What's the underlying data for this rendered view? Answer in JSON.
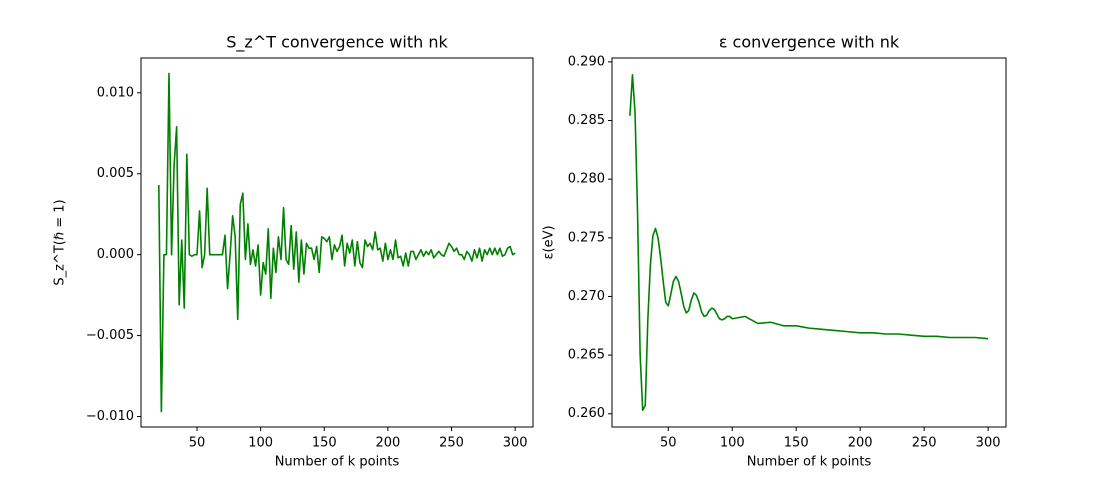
{
  "chart_data": [
    {
      "type": "line",
      "title": "S_z^T convergence with nk",
      "xlabel": "Number of k points",
      "ylabel": "S_z^T(ℏ = 1)",
      "color": "#008000",
      "xlim": [
        6,
        314
      ],
      "xticks": [
        50,
        100,
        150,
        200,
        250,
        300
      ],
      "ylim": [
        -0.01065,
        0.01215
      ],
      "yticks": [
        {
          "value": -0.01,
          "label": "−0.010"
        },
        {
          "value": -0.005,
          "label": "−0.005"
        },
        {
          "value": 0,
          "label": "0.000"
        },
        {
          "value": 0.005,
          "label": "0.005"
        },
        {
          "value": 0.01,
          "label": "0.010"
        }
      ],
      "x": [
        20,
        22,
        24,
        26,
        28,
        30,
        32,
        34,
        36,
        38,
        40,
        42,
        44,
        46,
        48,
        50,
        52,
        54,
        56,
        58,
        60,
        62,
        64,
        66,
        68,
        70,
        72,
        74,
        76,
        78,
        80,
        82,
        84,
        86,
        88,
        90,
        92,
        94,
        96,
        98,
        100,
        102,
        104,
        106,
        108,
        110,
        112,
        114,
        116,
        118,
        120,
        122,
        124,
        126,
        128,
        130,
        132,
        134,
        136,
        138,
        140,
        142,
        144,
        146,
        148,
        150,
        152,
        154,
        156,
        158,
        160,
        162,
        164,
        166,
        168,
        170,
        172,
        174,
        176,
        178,
        180,
        182,
        184,
        186,
        188,
        190,
        192,
        194,
        196,
        198,
        200,
        202,
        204,
        206,
        208,
        210,
        212,
        214,
        216,
        218,
        220,
        222,
        224,
        226,
        228,
        230,
        232,
        234,
        236,
        238,
        240,
        242,
        244,
        246,
        248,
        250,
        252,
        254,
        256,
        258,
        260,
        262,
        264,
        266,
        268,
        270,
        272,
        274,
        276,
        278,
        280,
        282,
        284,
        286,
        288,
        290,
        292,
        294,
        296,
        298,
        300
      ],
      "values": [
        0.0043,
        -0.0097,
        0.0,
        0.0,
        0.0112,
        0.0,
        0.0055,
        0.0079,
        -0.0031,
        0.0009,
        -0.0033,
        0.0062,
        0.0,
        -0.0001,
        0.0,
        0.0,
        0.0027,
        -0.0008,
        0.0,
        0.0041,
        0.0,
        0.0,
        0.0,
        0.0,
        0.0,
        0.0,
        0.0012,
        -0.0021,
        0.0,
        0.0024,
        0.0011,
        -0.004,
        0.0031,
        0.0038,
        -0.0003,
        0.0019,
        -0.0006,
        0.0003,
        -0.0007,
        0.0006,
        -0.0025,
        -0.0005,
        -0.0012,
        0.0016,
        -0.0027,
        0.0004,
        -0.0011,
        0.0011,
        -0.0003,
        0.0029,
        -0.0003,
        -0.0006,
        0.0018,
        -0.0009,
        0.0014,
        -0.0017,
        0.0009,
        -0.0012,
        0.0007,
        0.0004,
        0.0004,
        -0.0003,
        0.0005,
        -0.0011,
        0.0011,
        0.001,
        0.0008,
        0.0011,
        -0.0003,
        0.0006,
        0.0002,
        0.0005,
        0.0012,
        -0.0007,
        0.0007,
        0.0001,
        0.0009,
        -0.0007,
        0.0008,
        -0.0005,
        -0.0008,
        0.0009,
        0.0005,
        0.0007,
        0.0003,
        0.0014,
        0.0003,
        0.0004,
        -0.0004,
        0.0007,
        -0.0003,
        0.0003,
        -0.0003,
        0.0009,
        -0.0002,
        -0.0001,
        -0.0007,
        0.0001,
        -0.0007,
        0.0002,
        0.0002,
        -0.0003,
        0.0,
        0.0003,
        -0.0001,
        0.0002,
        0.0,
        0.0003,
        -0.0002,
        0.0,
        0.0002,
        0.0,
        -0.0001,
        0.0003,
        0.0007,
        0.0005,
        0.0002,
        0.0004,
        0.0,
        0.0,
        -0.0003,
        0.0002,
        0.0,
        -0.0004,
        0.0003,
        -0.0002,
        0.0004,
        -0.0004,
        0.0003,
        0.0,
        0.0004,
        0.0,
        0.0004,
        0.0,
        0.0004,
        -0.0001,
        0.0,
        0.0004,
        0.0005,
        0.0,
        0.0001
      ]
    },
    {
      "type": "line",
      "title": "ε convergence with nk",
      "xlabel": "Number of k points",
      "ylabel": "ε(eV)",
      "color": "#008000",
      "xlim": [
        6,
        314
      ],
      "xticks": [
        50,
        100,
        150,
        200,
        250,
        300
      ],
      "ylim": [
        0.25887,
        0.29033
      ],
      "yticks": [
        {
          "value": 0.26,
          "label": "0.260"
        },
        0.265,
        {
          "value": 0.27,
          "label": "0.270"
        },
        0.275,
        {
          "value": 0.28,
          "label": "0.280"
        },
        0.285,
        {
          "value": 0.29,
          "label": "0.290"
        }
      ],
      "x": [
        20,
        22,
        24,
        26,
        28,
        30,
        32,
        34,
        36,
        38,
        40,
        42,
        44,
        46,
        48,
        50,
        52,
        54,
        56,
        58,
        60,
        62,
        64,
        66,
        68,
        70,
        72,
        74,
        76,
        78,
        80,
        82,
        84,
        86,
        88,
        90,
        92,
        94,
        96,
        98,
        100,
        110,
        120,
        130,
        140,
        150,
        160,
        170,
        180,
        190,
        200,
        210,
        220,
        230,
        240,
        250,
        260,
        270,
        280,
        290,
        300
      ],
      "values": [
        0.2854,
        0.2889,
        0.2857,
        0.277,
        0.265,
        0.2603,
        0.2607,
        0.268,
        0.2727,
        0.2752,
        0.2758,
        0.275,
        0.2733,
        0.2713,
        0.2695,
        0.2692,
        0.2702,
        0.2713,
        0.2717,
        0.2713,
        0.2703,
        0.2692,
        0.2686,
        0.2688,
        0.2697,
        0.2703,
        0.2701,
        0.2695,
        0.2687,
        0.2683,
        0.2684,
        0.2688,
        0.269,
        0.2689,
        0.2685,
        0.2681,
        0.268,
        0.2681,
        0.2683,
        0.2683,
        0.2681,
        0.2683,
        0.2677,
        0.2678,
        0.2675,
        0.2675,
        0.2673,
        0.2672,
        0.2671,
        0.267,
        0.2669,
        0.2669,
        0.2668,
        0.2668,
        0.2667,
        0.2666,
        0.2666,
        0.2665,
        0.2665,
        0.2665,
        0.2664
      ]
    }
  ]
}
